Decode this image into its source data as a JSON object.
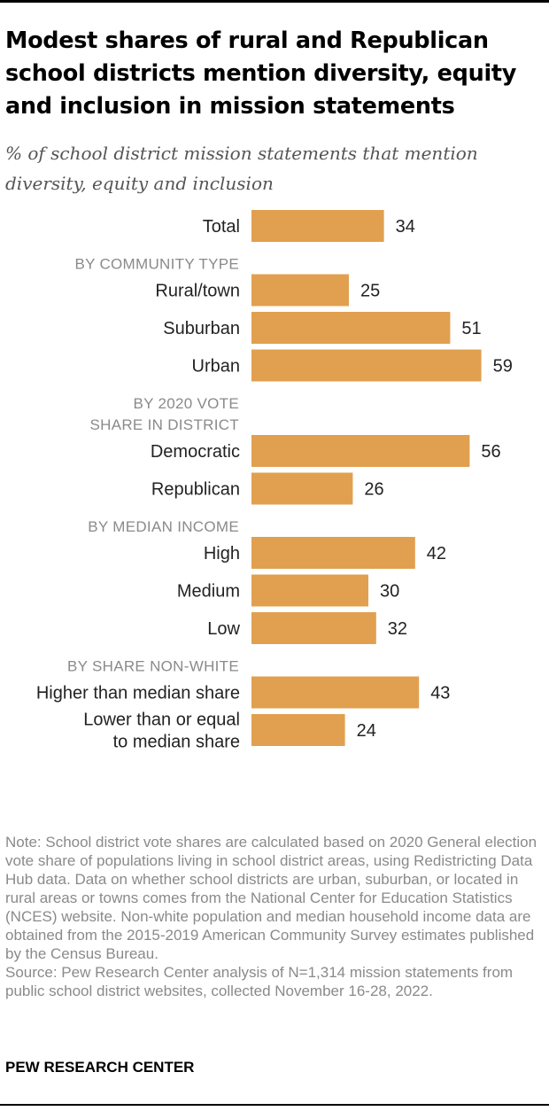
{
  "header": {
    "title": "Modest shares of rural and Republican school districts mention diversity, equity and inclusion in mission statements",
    "subtitle": "% of school district mission statements that mention diversity, equity and inclusion"
  },
  "chart_data": {
    "type": "bar",
    "orientation": "horizontal",
    "bar_color": "#E1A04F",
    "groups": [
      {
        "label": "",
        "items": [
          {
            "label": "Total",
            "value": 34
          }
        ]
      },
      {
        "label": "BY COMMUNITY TYPE",
        "items": [
          {
            "label": "Rural/town",
            "value": 25
          },
          {
            "label": "Suburban",
            "value": 51
          },
          {
            "label": "Urban",
            "value": 59
          }
        ]
      },
      {
        "label": "BY 2020 VOTE\nSHARE IN DISTRICT",
        "items": [
          {
            "label": "Democratic",
            "value": 56
          },
          {
            "label": "Republican",
            "value": 26
          }
        ]
      },
      {
        "label": "BY MEDIAN INCOME",
        "items": [
          {
            "label": "High",
            "value": 42
          },
          {
            "label": "Medium",
            "value": 30
          },
          {
            "label": "Low",
            "value": 32
          }
        ]
      },
      {
        "label": "BY SHARE NON-WHITE",
        "items": [
          {
            "label": "Higher than median share",
            "value": 43
          },
          {
            "label": "Lower than or equal\nto median share",
            "value": 24
          }
        ]
      }
    ]
  },
  "footer": {
    "note": "Note: School district vote shares are calculated based on 2020 General election vote share of populations living in school district areas, using Redistricting Data Hub data. Data on whether school districts are urban, suburban, or located in rural areas or towns comes from the National Center for Education Statistics (NCES) website. Non-white population and median household income data are obtained from the 2015-2019 American Community Survey estimates published by the Census Bureau.",
    "source": "Source: Pew Research Center analysis of N=1,314 mission statements from public school district websites, collected November 16-28, 2022.",
    "brand": "PEW RESEARCH CENTER"
  }
}
